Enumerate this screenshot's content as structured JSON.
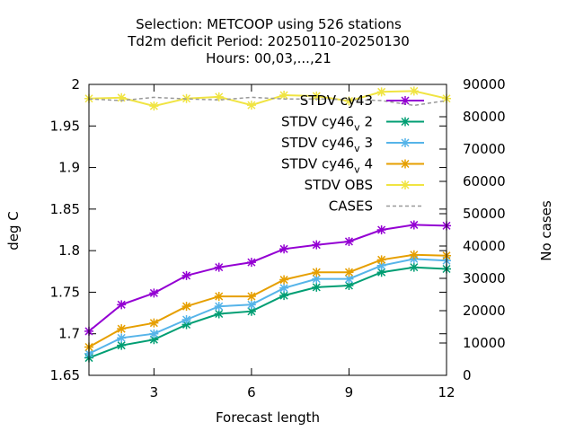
{
  "chart_data": {
    "type": "line",
    "title_lines": [
      "Selection: METCOOP using   526 stations",
      "Td2m deficit   Period: 20250110-20250130",
      "Hours:  00,03,...,21"
    ],
    "xlabel": "Forecast length",
    "ylabel": "deg C",
    "y2label": "No cases",
    "xlim": [
      1,
      12
    ],
    "ylim": [
      1.65,
      2.0
    ],
    "y2lim": [
      0,
      90000
    ],
    "xticks": [
      "3",
      "6",
      "9",
      "12"
    ],
    "yticks": [
      "1.65",
      "1.7",
      "1.75",
      "1.8",
      "1.85",
      "1.9",
      "1.95",
      "2"
    ],
    "y2ticks": [
      "0",
      "10000",
      "20000",
      "30000",
      "40000",
      "50000",
      "60000",
      "70000",
      "80000",
      "90000"
    ],
    "x": [
      1,
      2,
      3,
      4,
      5,
      6,
      7,
      8,
      9,
      10,
      11,
      12
    ],
    "legend_position": "top-right",
    "series": [
      {
        "name": "STDV cy43",
        "color": "#9400d3",
        "axis": "y",
        "values": [
          1.703,
          1.735,
          1.749,
          1.77,
          1.78,
          1.786,
          1.802,
          1.807,
          1.811,
          1.825,
          1.831,
          1.83
        ]
      },
      {
        "name": "STDV cy46_v2",
        "label_main": "STDV cy46",
        "label_sub": "v",
        "label_tail": "2",
        "color": "#009e73",
        "axis": "y",
        "values": [
          1.671,
          1.686,
          1.693,
          1.711,
          1.724,
          1.727,
          1.746,
          1.756,
          1.758,
          1.774,
          1.78,
          1.778
        ]
      },
      {
        "name": "STDV cy46_v3",
        "label_main": "STDV cy46",
        "label_sub": "v",
        "label_tail": "3",
        "color": "#56b4e9",
        "axis": "y",
        "values": [
          1.676,
          1.695,
          1.7,
          1.717,
          1.733,
          1.735,
          1.755,
          1.766,
          1.766,
          1.782,
          1.79,
          1.788
        ]
      },
      {
        "name": "STDV cy46_v4",
        "label_main": "STDV cy46",
        "label_sub": "v",
        "label_tail": "4",
        "color": "#e69f00",
        "axis": "y",
        "values": [
          1.684,
          1.706,
          1.713,
          1.733,
          1.745,
          1.745,
          1.765,
          1.774,
          1.774,
          1.789,
          1.795,
          1.794
        ]
      },
      {
        "name": "STDV OBS",
        "color": "#f0e442",
        "axis": "y",
        "values": [
          1.983,
          1.984,
          1.974,
          1.983,
          1.985,
          1.975,
          1.987,
          1.986,
          1.98,
          1.991,
          1.992,
          1.983
        ]
      },
      {
        "name": "CASES",
        "color": "#999999",
        "axis": "y2",
        "dashed": true,
        "values": [
          85500,
          85000,
          86000,
          85500,
          85200,
          86000,
          85500,
          85500,
          85300,
          85000,
          83500,
          85000
        ]
      }
    ]
  }
}
